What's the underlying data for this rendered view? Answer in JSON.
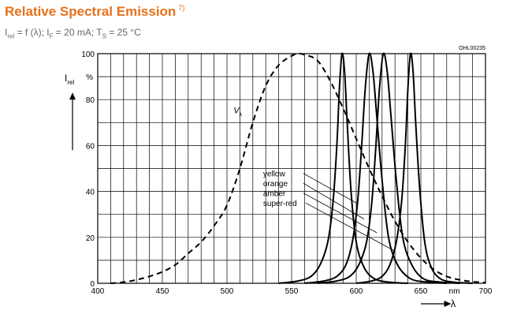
{
  "header": {
    "title": "Relative Spectral Emission",
    "footnote": "7)",
    "condition_parts": [
      "I",
      "rel",
      " = f (λ); I",
      "F",
      " = 20 mA; T",
      "S",
      " = 25 °C"
    ]
  },
  "chart_data": {
    "type": "line",
    "code": "OHL00235",
    "ylabel": {
      "main": "I",
      "sub": "rel"
    },
    "yunit": "%",
    "xlabel": "λ",
    "xunit": "nm",
    "xlim": [
      400,
      700
    ],
    "ylim": [
      0,
      100
    ],
    "xticks": [
      400,
      450,
      500,
      550,
      600,
      650,
      700
    ],
    "yticks": [
      0,
      20,
      40,
      60,
      80,
      100
    ],
    "grid": true,
    "annotations": {
      "vlambda": {
        "main": "V",
        "sub": "λ"
      }
    },
    "legend": [
      "yellow",
      "orange",
      "amber",
      "super-red"
    ],
    "series": [
      {
        "style": "dashed",
        "x": [
          410,
          420,
          430,
          440,
          450,
          460,
          470,
          480,
          490,
          500,
          510,
          520,
          530,
          540,
          550,
          555,
          560,
          570,
          580,
          590,
          600,
          610,
          620,
          630,
          640,
          650,
          660,
          670,
          680,
          690,
          700
        ],
        "y": [
          0,
          0.5,
          1.5,
          3,
          5,
          8,
          13,
          18,
          25,
          34,
          50,
          70,
          86,
          95,
          99,
          100,
          99.5,
          97,
          88,
          76,
          63,
          50,
          38,
          27,
          18,
          11,
          6,
          3,
          1.5,
          0.7,
          0.3
        ]
      },
      {
        "style": "solid",
        "x": [
          540,
          555,
          565,
          572,
          578,
          582,
          585,
          587,
          589,
          591,
          593,
          596,
          600,
          606,
          614,
          625,
          640
        ],
        "y": [
          0,
          1,
          3,
          8,
          18,
          35,
          60,
          85,
          100,
          92,
          70,
          40,
          18,
          7,
          2,
          0.5,
          0
        ]
      },
      {
        "style": "solid",
        "x": [
          560,
          575,
          585,
          592,
          597,
          601,
          604,
          607,
          610,
          613,
          616,
          620,
          625,
          632,
          642,
          655,
          670
        ],
        "y": [
          0,
          1,
          3,
          8,
          18,
          35,
          58,
          85,
          100,
          92,
          72,
          45,
          20,
          8,
          2,
          0.5,
          0
        ]
      },
      {
        "style": "solid",
        "x": [
          570,
          585,
          595,
          602,
          608,
          612,
          615,
          618,
          621,
          624,
          627,
          631,
          636,
          643,
          652,
          665,
          680
        ],
        "y": [
          0,
          1,
          3,
          8,
          18,
          35,
          58,
          85,
          100,
          92,
          72,
          45,
          20,
          8,
          2,
          0.5,
          0
        ]
      },
      {
        "style": "solid",
        "x": [
          600,
          612,
          620,
          626,
          631,
          635,
          638,
          640,
          642,
          644,
          646,
          649,
          653,
          658,
          665,
          675,
          690
        ],
        "y": [
          0,
          1,
          3,
          8,
          18,
          35,
          60,
          85,
          100,
          92,
          70,
          42,
          18,
          7,
          2,
          0.5,
          0
        ]
      }
    ]
  }
}
